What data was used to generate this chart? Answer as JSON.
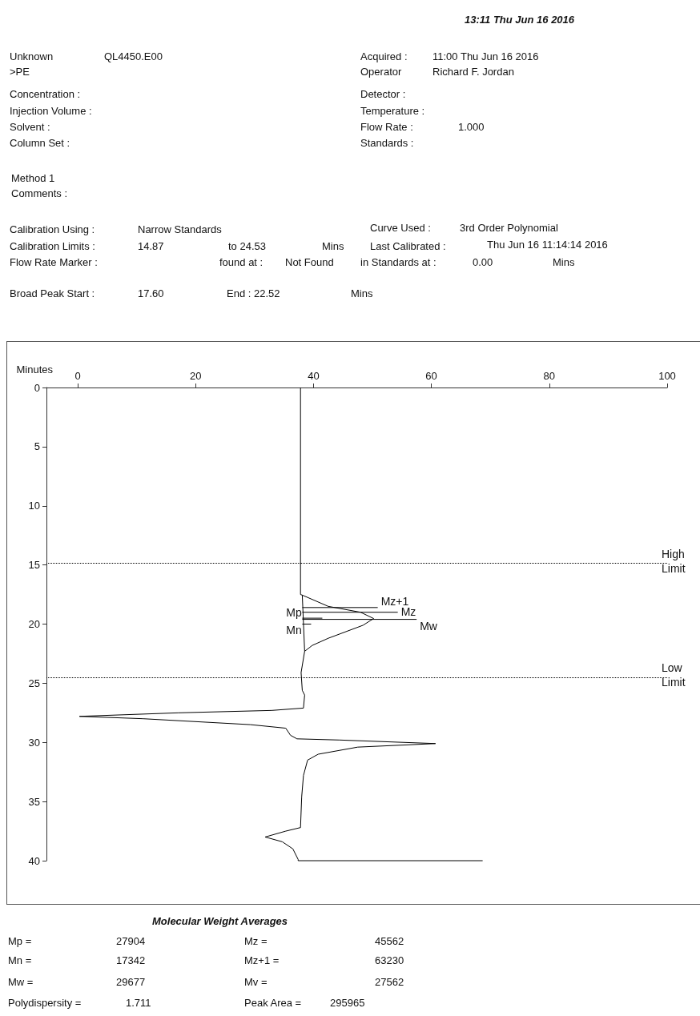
{
  "chart_data": {
    "type": "line",
    "ylabel": "Minutes",
    "xlim": [
      -5.3,
      100
    ],
    "xticks": [
      0,
      20,
      40,
      60,
      80,
      100
    ],
    "ylim": [
      40,
      0
    ],
    "yticks": [
      0,
      5,
      10,
      15,
      20,
      25,
      30,
      35,
      40
    ],
    "grid": false,
    "marker": "none",
    "line_style": "solid",
    "series": [
      {
        "color": "#000000",
        "x": [
          37.8,
          37.8,
          38.1,
          42.5,
          48,
          50.2,
          48.4,
          42.5,
          39.8,
          38.5,
          37.9,
          38.1,
          38.5,
          38.3,
          32.9,
          17.1,
          0.3,
          11.1,
          29.3,
          35.3,
          36.1,
          37.2,
          44.4,
          60.7,
          47.5,
          40.8,
          39.0,
          38.3,
          38.0,
          37.8,
          35.3,
          31.8,
          34.7,
          36.5,
          37.4,
          37.4,
          68.7
        ],
        "values": [
          0,
          17.5,
          17.55,
          18.5,
          19.0,
          19.53,
          20.1,
          21.2,
          21.8,
          22.3,
          24.1,
          25.6,
          26.0,
          27.1,
          27.3,
          27.5,
          27.8,
          28.0,
          28.5,
          28.8,
          29.4,
          29.7,
          29.8,
          30.1,
          30.4,
          31.0,
          31.5,
          32.8,
          34.6,
          37.2,
          37.5,
          38.0,
          38.4,
          39.0,
          39.9,
          40,
          40
        ]
      },
      {
        "color": "#000000",
        "x": [
          38.1,
          38.5
        ],
        "values": [
          17.55,
          22.3
        ]
      },
      {
        "name": "Mz+1",
        "color": "#000000",
        "x": [
          38.1,
          50.9
        ],
        "values": [
          18.6,
          18.6
        ]
      },
      {
        "name": "Mz",
        "color": "#000000",
        "x": [
          38.1,
          54.3
        ],
        "values": [
          19.0,
          19.0
        ]
      },
      {
        "name": "Mw",
        "color": "#000000",
        "x": [
          38.1,
          57.5
        ],
        "values": [
          19.6,
          19.6
        ]
      },
      {
        "name": "Mp",
        "color": "#000000",
        "x": [
          38.1,
          41.5
        ],
        "values": [
          19.5,
          19.5
        ]
      },
      {
        "name": "Mn",
        "color": "#000000",
        "x": [
          38.1,
          39.6
        ],
        "values": [
          20.0,
          20.0
        ]
      }
    ],
    "ref_lines": [
      {
        "axis": "y",
        "value": 14.87,
        "label": "High Limit",
        "color": "#000000",
        "line_style": "dotted"
      },
      {
        "axis": "y",
        "value": 24.53,
        "label": "Low Limit",
        "color": "#000000",
        "line_style": "dotted"
      }
    ],
    "annotations": [
      "13:11 Thu Jun 16 2016",
      "Unknown",
      "QL4450.E00",
      ">PE",
      "Acquired :",
      "11:00 Thu Jun 16 2016",
      "Operator",
      "Richard F. Jordan",
      "Concentration :",
      "Injection Volume :",
      "Solvent :",
      "Column Set :",
      "Detector :",
      "Temperature :",
      "Flow Rate :",
      "1.000",
      "Standards :",
      "Method 1",
      "Comments :",
      "Calibration Using :",
      "Narrow Standards",
      "Curve Used :",
      "3rd Order Polynomial",
      "Calibration Limits :",
      "14.87",
      "to 24.53",
      "Mins",
      "Last Calibrated :",
      "Thu Jun 16 11:14:14 2016",
      "Flow Rate Marker :",
      "found at :",
      "Not Found",
      "in Standards at :",
      "0.00",
      "Mins",
      "Broad Peak Start :",
      "17.60",
      "End : 22.52",
      "Mins",
      "Molecular Weight Averages",
      "Mp =",
      "27904",
      "Mz =",
      "45562",
      "Mn =",
      "17342",
      "Mz+1 =",
      "63230",
      "Mw =",
      "29677",
      "Mv =",
      "27562",
      "Polydispersity =",
      "1.711",
      "Peak Area =",
      "295965"
    ]
  }
}
